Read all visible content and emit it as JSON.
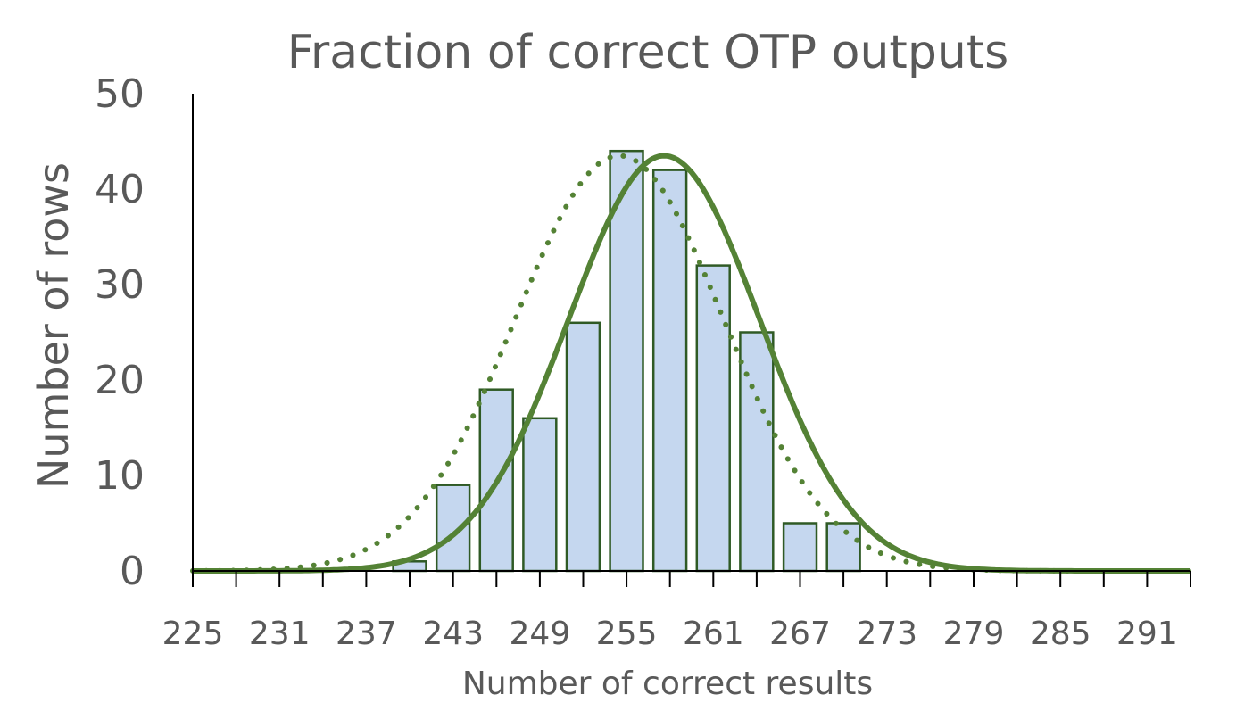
{
  "chart_data": {
    "type": "bar",
    "title": "Fraction of correct OTP outputs",
    "xlabel": "Number of correct results",
    "ylabel": "Number of  rows",
    "xlim": [
      225,
      294
    ],
    "ylim": [
      0,
      50
    ],
    "y_ticks": [
      0,
      10,
      20,
      30,
      40,
      50
    ],
    "x_tick_labels": [
      "225",
      "231",
      "237",
      "243",
      "249",
      "255",
      "261",
      "267",
      "273",
      "279",
      "285",
      "291"
    ],
    "bars": {
      "x": [
        240,
        243,
        246,
        249,
        252,
        255,
        258,
        261,
        264,
        267,
        270
      ],
      "values": [
        1,
        9,
        19,
        16,
        26,
        44,
        42,
        32,
        25,
        5,
        5
      ],
      "fill": "#c5d7ef",
      "stroke": "#2f5a25"
    },
    "curves": [
      {
        "style": "solid",
        "mean": 257.6,
        "peak": 43.5,
        "sd": 6.6,
        "color": "#548235"
      },
      {
        "style": "dotted",
        "mean": 254.5,
        "peak": 43.5,
        "sd": 7.2,
        "color": "#548235"
      }
    ],
    "grid": false,
    "legend": "none"
  }
}
